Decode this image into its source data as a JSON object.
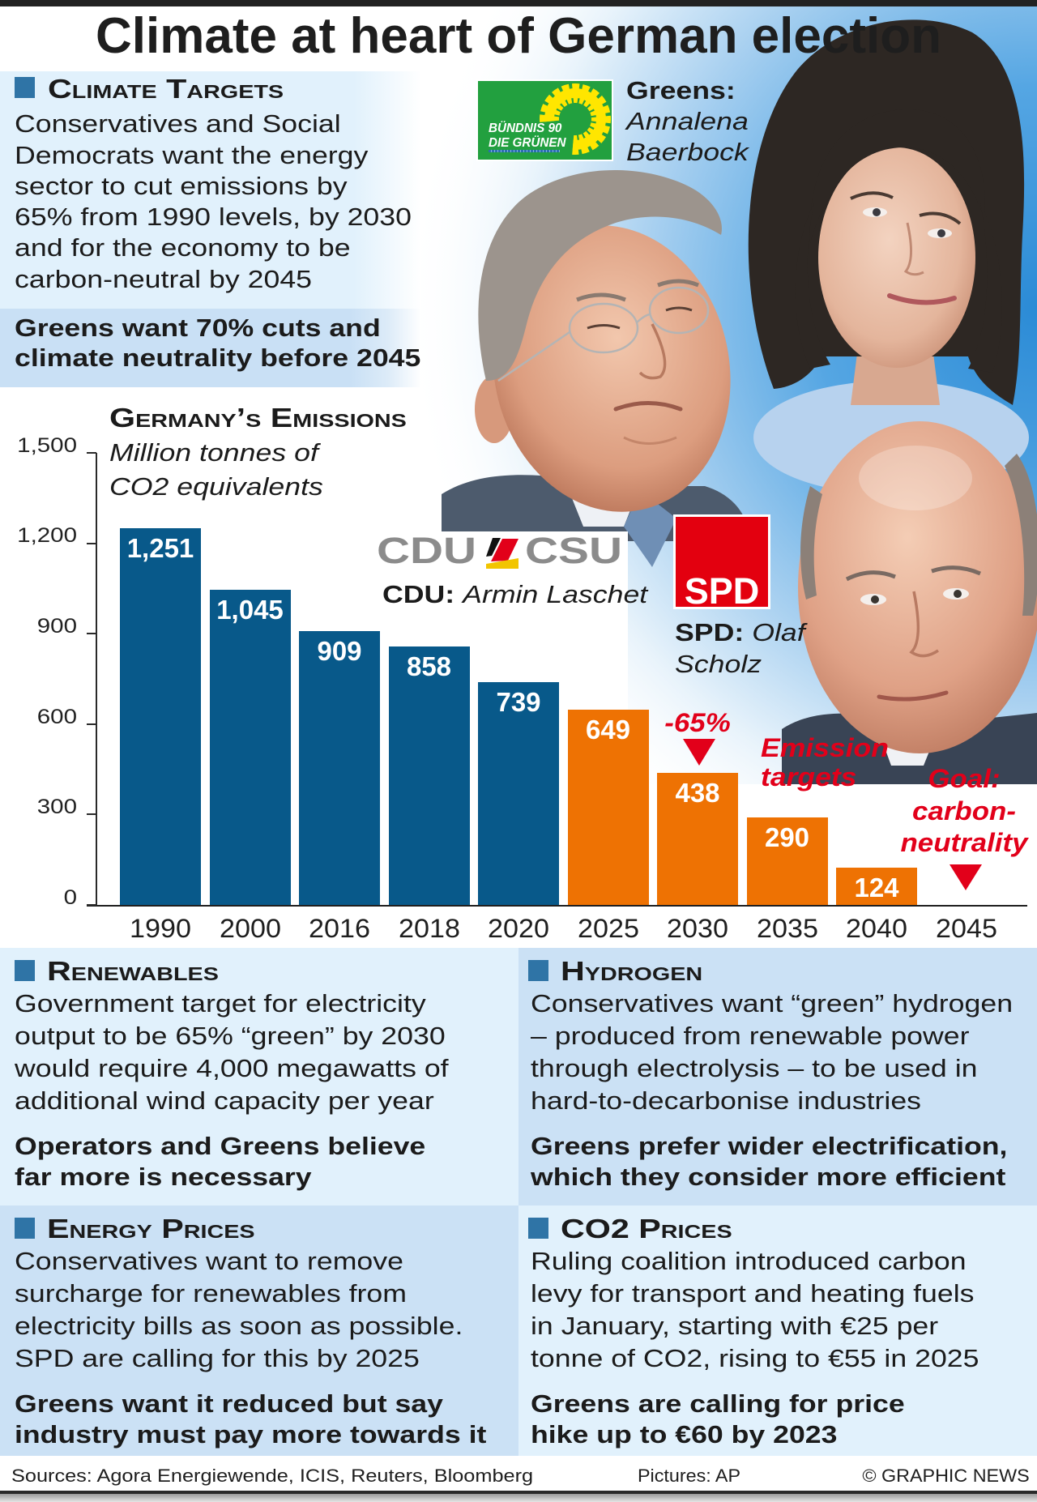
{
  "header": {
    "title": "Climate at heart of German election"
  },
  "climate_targets": {
    "heading": "Climate Targets",
    "body_lines": [
      "Conservatives and Social",
      "Democrats want the energy",
      "sector to cut emissions by",
      "65% from 1990 levels, by 2030",
      "and for the economy to be",
      "carbon-neutral by 2045"
    ],
    "greens_lines": [
      "Greens want 70% cuts and",
      "climate neutrality before 2045"
    ]
  },
  "candidates": {
    "greens": {
      "logo_line1": "BÜNDNIS 90",
      "logo_line2": "DIE GRÜNEN",
      "party": "Greens:",
      "name_line1": "Annalena",
      "name_line2": "Baerbock",
      "logo_color": "#22a03f",
      "sunflower_color": "#ffe600"
    },
    "cdu": {
      "logo_left": "CDU",
      "logo_right": "CSU",
      "party": "CDU:",
      "name": "Armin Laschet",
      "logo_color": "#8b8b8b"
    },
    "spd": {
      "logo_text": "SPD",
      "party": "SPD:",
      "name_line1": "Olaf",
      "name_line2": "Scholz",
      "logo_color": "#e3000f"
    }
  },
  "chart_data": {
    "type": "bar",
    "title": "Germany’s Emissions",
    "subtitle_lines": [
      "Million tonnes of",
      "CO2 equivalents"
    ],
    "xlabel": "",
    "ylabel": "Million tonnes of CO2 equivalents",
    "categories": [
      "1990",
      "2000",
      "2016",
      "2018",
      "2020",
      "2025",
      "2030",
      "2035",
      "2040",
      "2045"
    ],
    "series": [
      {
        "name": "Emissions",
        "color": "#08598a",
        "values": [
          1251,
          1045,
          909,
          858,
          739,
          null,
          null,
          null,
          null,
          null
        ]
      },
      {
        "name": "Emission targets",
        "color": "#ee7203",
        "values": [
          null,
          null,
          null,
          null,
          null,
          649,
          438,
          290,
          124,
          0
        ]
      }
    ],
    "value_labels": [
      "1,251",
      "1,045",
      "909",
      "858",
      "739",
      "649",
      "438",
      "290",
      "124",
      ""
    ],
    "y_ticks": [
      0,
      300,
      600,
      900,
      1200,
      1500
    ],
    "y_tick_labels": [
      "0",
      "300",
      "600",
      "900",
      "1,200",
      "1,500"
    ],
    "ylim": [
      0,
      1500
    ],
    "grid": false,
    "legend": null,
    "annotations": [
      {
        "text": "-65%",
        "category": "2030",
        "arrow": "down"
      },
      {
        "lines": [
          "Emission",
          "targets"
        ]
      },
      {
        "lines": [
          "Goal:",
          "carbon-",
          "neutrality"
        ],
        "category": "2045",
        "arrow": "down"
      }
    ],
    "annotation_color": "#e2001a"
  },
  "sections": [
    {
      "heading": "Renewables",
      "body_lines": [
        "Government target for electricity",
        "output to be 65% “green” by 2030",
        "would require 4,000 megawatts of",
        "additional wind capacity per year"
      ],
      "bold_lines": [
        "Operators and Greens believe",
        "far more is necessary"
      ]
    },
    {
      "heading": "Hydrogen",
      "body_lines": [
        "Conservatives want “green” hydrogen",
        "– produced from renewable power",
        "through electrolysis – to be used in",
        "hard-to-decarbonise industries"
      ],
      "bold_lines": [
        "Greens prefer wider electrification,",
        "which they consider more efficient"
      ]
    },
    {
      "heading": "Energy Prices",
      "body_lines": [
        "Conservatives want to remove",
        "surcharge for renewables from",
        "electricity bills as soon as possible.",
        "SPD are calling for this by 2025"
      ],
      "bold_lines": [
        "Greens want it reduced but say",
        "industry must pay more towards it"
      ]
    },
    {
      "heading": "CO2 Prices",
      "body_lines": [
        "Ruling coalition introduced carbon",
        "levy for transport and heating fuels",
        "in January, starting with €25 per",
        "tonne of CO2, rising to €55 in 2025"
      ],
      "bold_lines": [
        "Greens are calling for price",
        "hike up to €60 by 2023"
      ]
    }
  ],
  "footer": {
    "sources": "Sources: Agora Energiewende, ICIS, Reuters, Bloomberg",
    "pictures": "Pictures: AP",
    "copyright": "© GRAPHIC NEWS"
  },
  "colors": {
    "section_square": "#2f74a6",
    "light_panel": "#e1f1fc",
    "dark_panel": "#cbe1f5",
    "greens_panel": "#c9e0f5",
    "text": "#1b1b1b"
  }
}
